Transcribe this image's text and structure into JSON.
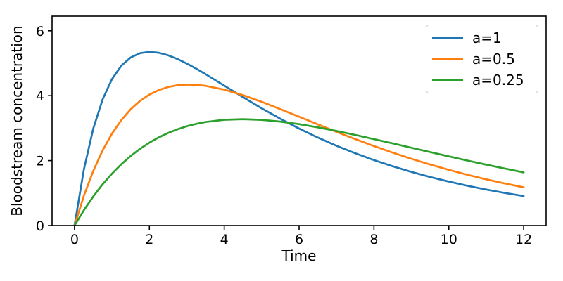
{
  "chart_data": {
    "type": "line",
    "title": "",
    "xlabel": "Time",
    "ylabel": "Bloodstream concentration",
    "xlim": [
      -0.6,
      12.6
    ],
    "ylim": [
      0,
      6.45
    ],
    "xticks": [
      0,
      2,
      4,
      6,
      8,
      10,
      12
    ],
    "yticks": [
      0,
      2,
      4,
      6
    ],
    "grid": false,
    "legend_position": "upper right",
    "colors": {
      "axes": "#000000",
      "background": "#ffffff",
      "legend_border": "#cccccc",
      "legend_background": "#ffffff"
    },
    "x": [
      0,
      0.25,
      0.5,
      0.75,
      1,
      1.25,
      1.5,
      1.75,
      2,
      2.25,
      2.5,
      2.75,
      3,
      3.25,
      3.5,
      4,
      4.5,
      5,
      5.5,
      6,
      6.5,
      7,
      7.5,
      8,
      8.5,
      9,
      9.5,
      10,
      10.5,
      11,
      11.5,
      12
    ],
    "series": [
      {
        "name": "a=1",
        "color": "#1f77b4",
        "values": [
          0,
          1.724,
          2.983,
          3.883,
          4.509,
          4.923,
          5.177,
          5.309,
          5.35,
          5.322,
          5.244,
          5.13,
          4.99,
          4.833,
          4.664,
          4.31,
          3.955,
          3.611,
          3.288,
          2.987,
          2.71,
          2.457,
          2.226,
          2.016,
          1.825,
          1.652,
          1.495,
          1.353,
          1.224,
          1.108,
          1.002,
          0.907
        ]
      },
      {
        "name": "a=0.5",
        "color": "#ff7f0e",
        "values": [
          0,
          0.916,
          1.68,
          2.312,
          2.829,
          3.247,
          3.579,
          3.838,
          4.033,
          4.173,
          4.267,
          4.321,
          4.342,
          4.335,
          4.304,
          4.187,
          4.016,
          3.811,
          3.586,
          3.352,
          3.117,
          2.885,
          2.662,
          2.448,
          2.246,
          2.056,
          1.879,
          1.715,
          1.563,
          1.423,
          1.294,
          1.177
        ]
      },
      {
        "name": "a=0.25",
        "color": "#2ca02c",
        "values": [
          0,
          0.473,
          0.894,
          1.27,
          1.597,
          1.887,
          2.141,
          2.362,
          2.552,
          2.714,
          2.851,
          2.965,
          3.058,
          3.132,
          3.189,
          3.258,
          3.277,
          3.255,
          3.201,
          3.123,
          3.025,
          2.913,
          2.791,
          2.662,
          2.53,
          2.396,
          2.262,
          2.13,
          2.001,
          1.875,
          1.754,
          1.637
        ]
      }
    ]
  }
}
